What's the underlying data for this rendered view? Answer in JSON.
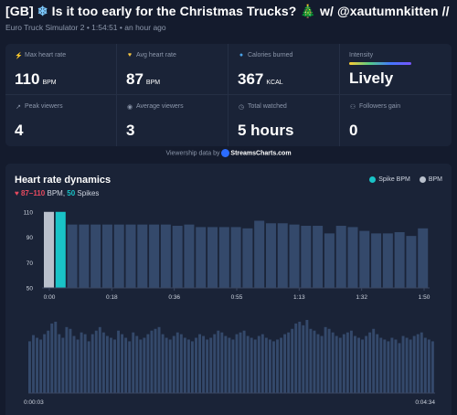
{
  "header": {
    "badge": "[GB]",
    "title_main": "Is it too early for the Christmas Trucks?",
    "title_tail": "w/ @xautumnkitten // !fana...",
    "game": "Euro Truck Simulator 2",
    "duration": "1:54:51",
    "ago": "an hour ago"
  },
  "stats": {
    "max_hr": {
      "label": "Max heart rate",
      "value": "110",
      "unit": "BPM"
    },
    "avg_hr": {
      "label": "Avg heart rate",
      "value": "87",
      "unit": "BPM"
    },
    "calories": {
      "label": "Calories burned",
      "value": "367",
      "unit": "KCAL"
    },
    "intensity": {
      "label": "Intensity",
      "value": "Lively"
    },
    "peak_viewers": {
      "label": "Peak viewers",
      "value": "4"
    },
    "avg_viewers": {
      "label": "Average viewers",
      "value": "3"
    },
    "total_watched": {
      "label": "Total watched",
      "value": "5 hours"
    },
    "followers": {
      "label": "Followers gain",
      "value": "0"
    }
  },
  "viewership": {
    "text": "Viewership data by",
    "brand": "StreamsCharts.com"
  },
  "chart": {
    "title": "Heart rate dynamics",
    "range": "87–110",
    "range_unit": "BPM,",
    "spikes_count": "50",
    "spikes_label": "Spikes",
    "legend": [
      {
        "label": "Spike BPM",
        "color": "#19c3c7"
      },
      {
        "label": "BPM",
        "color": "#b9c0cc"
      }
    ]
  },
  "chart_data": [
    {
      "type": "bar",
      "title": "Heart rate dynamics",
      "y_ticks": [
        110,
        90,
        70,
        50
      ],
      "ylim": [
        50,
        112
      ],
      "x_ticks": [
        "0:00",
        "0:18",
        "0:36",
        "0:55",
        "1:13",
        "1:32",
        "1:50"
      ],
      "values": [
        110,
        110,
        100,
        100,
        100,
        100,
        100,
        100,
        100,
        100,
        100,
        99,
        100,
        98,
        98,
        98,
        98,
        97,
        103,
        101,
        101,
        100,
        99,
        99,
        93,
        99,
        98,
        95,
        93,
        93,
        94,
        91,
        97
      ],
      "highlight": [
        {
          "index": 0,
          "series": "BPM",
          "color": "#b9c0cc"
        },
        {
          "index": 1,
          "series": "Spike BPM",
          "color": "#19c3c7"
        }
      ],
      "bar_color": "#34496b"
    },
    {
      "type": "bar",
      "x_range": [
        "0:00:03",
        "0:04:34"
      ],
      "values": [
        58,
        65,
        62,
        60,
        66,
        70,
        78,
        80,
        66,
        62,
        74,
        72,
        64,
        60,
        68,
        66,
        58,
        66,
        70,
        74,
        68,
        64,
        62,
        60,
        70,
        66,
        62,
        58,
        68,
        64,
        60,
        62,
        66,
        70,
        72,
        74,
        66,
        62,
        60,
        64,
        68,
        66,
        62,
        60,
        58,
        62,
        66,
        64,
        60,
        62,
        66,
        70,
        68,
        64,
        62,
        60,
        66,
        68,
        70,
        64,
        62,
        60,
        64,
        66,
        62,
        60,
        58,
        60,
        62,
        66,
        68,
        72,
        78,
        80,
        76,
        82,
        72,
        70,
        66,
        64,
        74,
        72,
        68,
        64,
        62,
        66,
        68,
        70,
        64,
        62,
        60,
        64,
        68,
        72,
        66,
        62,
        60,
        58,
        62,
        60,
        56,
        64,
        62,
        60,
        64,
        66,
        68,
        62,
        60,
        58
      ],
      "bar_color": "#34496b"
    }
  ]
}
